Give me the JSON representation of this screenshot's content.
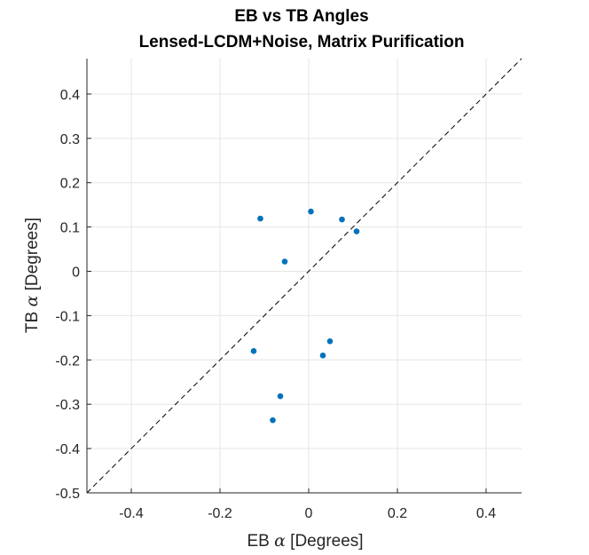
{
  "chart_data": {
    "type": "scatter",
    "title": "EB vs TB Angles",
    "subtitle": "Lensed-LCDM+Noise, Matrix Purification",
    "xlabel_prefix": "EB ",
    "xlabel_symbol": "α",
    "xlabel_suffix": " [Degrees]",
    "ylabel_prefix": "TB ",
    "ylabel_symbol": "α",
    "ylabel_suffix": " [Degrees]",
    "xlim": [
      -0.5,
      0.48
    ],
    "ylim": [
      -0.5,
      0.48
    ],
    "xticks": [
      -0.4,
      -0.2,
      0,
      0.2,
      0.4
    ],
    "xtick_labels": [
      "-0.4",
      "-0.2",
      "0",
      "0.2",
      "0.4"
    ],
    "yticks": [
      -0.5,
      -0.4,
      -0.3,
      -0.2,
      -0.1,
      0,
      0.1,
      0.2,
      0.3,
      0.4
    ],
    "ytick_labels": [
      "-0.5",
      "-0.4",
      "-0.3",
      "-0.2",
      "-0.1",
      "0",
      "0.1",
      "0.2",
      "0.3",
      "0.4"
    ],
    "grid": true,
    "reference_line": "y = x (dashed)",
    "marker_color": "#0072BD",
    "points": [
      {
        "x": -0.109,
        "y": 0.119
      },
      {
        "x": 0.005,
        "y": 0.135
      },
      {
        "x": 0.075,
        "y": 0.117
      },
      {
        "x": 0.108,
        "y": 0.09
      },
      {
        "x": -0.054,
        "y": 0.022
      },
      {
        "x": 0.048,
        "y": -0.158
      },
      {
        "x": -0.124,
        "y": -0.18
      },
      {
        "x": 0.032,
        "y": -0.19
      },
      {
        "x": -0.064,
        "y": -0.282
      },
      {
        "x": -0.081,
        "y": -0.336
      }
    ]
  }
}
